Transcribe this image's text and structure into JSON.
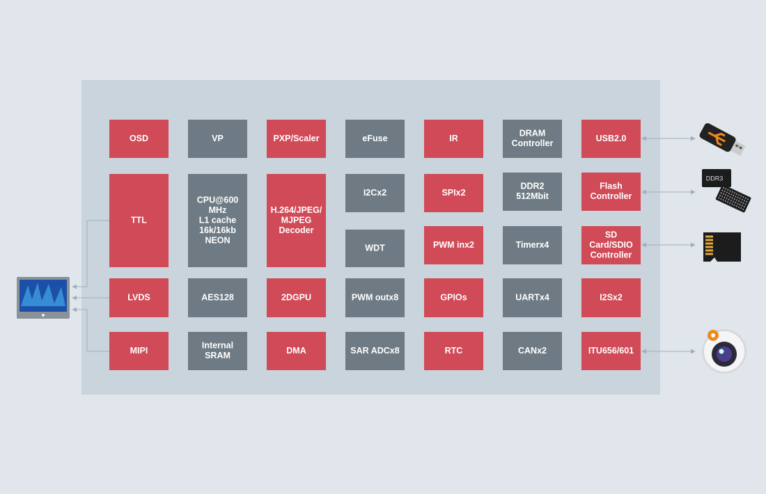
{
  "blocks": [
    {
      "lines": [
        "OSD"
      ],
      "color": "#d04a57"
    },
    {
      "lines": [
        "VP"
      ],
      "color": "#6e7b84"
    },
    {
      "lines": [
        "PXP/Scaler"
      ],
      "color": "#d04a57"
    },
    {
      "lines": [
        "eFuse"
      ],
      "color": "#6e7b84"
    },
    {
      "lines": [
        "IR"
      ],
      "color": "#d04a57"
    },
    {
      "lines": [
        "DRAM",
        "Controller"
      ],
      "color": "#6e7b84"
    },
    {
      "lines": [
        "USB2.0"
      ],
      "color": "#d04a57"
    },
    {
      "lines": [
        "TTL"
      ],
      "color": "#d04a57"
    },
    {
      "lines": [
        "CPU@600",
        "MHz",
        "L1 cache",
        "16k/16kb",
        "NEON"
      ],
      "color": "#6e7b84"
    },
    {
      "lines": [
        "H.264/JPEG/",
        "MJPEG",
        "Decoder"
      ],
      "color": "#d04a57"
    },
    {
      "lines": [
        "I2Cx2"
      ],
      "color": "#6e7b84"
    },
    {
      "lines": [
        "WDT"
      ],
      "color": "#6e7b84"
    },
    {
      "lines": [
        "SPIx2"
      ],
      "color": "#d04a57"
    },
    {
      "lines": [
        "PWM inx2"
      ],
      "color": "#d04a57"
    },
    {
      "lines": [
        "DDR2",
        "512Mbit"
      ],
      "color": "#6e7b84"
    },
    {
      "lines": [
        "Timerx4"
      ],
      "color": "#6e7b84"
    },
    {
      "lines": [
        "Flash",
        "Controller"
      ],
      "color": "#d04a57"
    },
    {
      "lines": [
        "SD",
        "Card/SDIO",
        "Controller"
      ],
      "color": "#d04a57"
    },
    {
      "lines": [
        "LVDS"
      ],
      "color": "#d04a57"
    },
    {
      "lines": [
        "AES128"
      ],
      "color": "#6e7b84"
    },
    {
      "lines": [
        "2DGPU"
      ],
      "color": "#d04a57"
    },
    {
      "lines": [
        "PWM outx8"
      ],
      "color": "#6e7b84"
    },
    {
      "lines": [
        "GPIOs"
      ],
      "color": "#d04a57"
    },
    {
      "lines": [
        "UARTx4"
      ],
      "color": "#6e7b84"
    },
    {
      "lines": [
        "I2Sx2"
      ],
      "color": "#d04a57"
    },
    {
      "lines": [
        "MIPI"
      ],
      "color": "#d04a57"
    },
    {
      "lines": [
        "Internal",
        "SRAM"
      ],
      "color": "#6e7b84"
    },
    {
      "lines": [
        "DMA"
      ],
      "color": "#d04a57"
    },
    {
      "lines": [
        "SAR ADCx8"
      ],
      "color": "#6e7b84"
    },
    {
      "lines": [
        "RTC"
      ],
      "color": "#d04a57"
    },
    {
      "lines": [
        "CANx2"
      ],
      "color": "#6e7b84"
    },
    {
      "lines": [
        "ITU656/601"
      ],
      "color": "#d04a57"
    }
  ],
  "icons": {
    "ddr_chip_label": "DDR3"
  }
}
